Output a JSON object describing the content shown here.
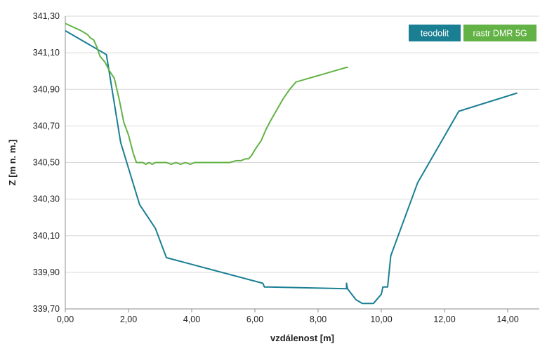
{
  "chart_data": {
    "type": "line",
    "xlabel": "vzdálenost [m]",
    "ylabel": "Z [m n. m.]",
    "xlim": [
      0,
      15
    ],
    "ylim": [
      339.7,
      341.3
    ],
    "x_ticks": [
      "0,00",
      "2,00",
      "4,00",
      "6,00",
      "8,00",
      "10,00",
      "12,00",
      "14,00"
    ],
    "y_ticks": [
      "339,70",
      "339,90",
      "340,10",
      "340,30",
      "340,50",
      "340,70",
      "340,90",
      "341,10",
      "341,30"
    ],
    "x_tick_values": [
      0,
      2,
      4,
      6,
      8,
      10,
      12,
      14
    ],
    "y_tick_values": [
      339.7,
      339.9,
      340.1,
      340.3,
      340.5,
      340.7,
      340.9,
      341.1,
      341.3
    ],
    "grid": "horizontal",
    "legend_position": "top-right",
    "series": [
      {
        "name": "teodolit",
        "color": "#1a7f93",
        "x": [
          0.0,
          1.3,
          1.75,
          2.35,
          2.85,
          3.2,
          6.25,
          6.3,
          8.9,
          8.9,
          8.93,
          9.2,
          9.4,
          9.75,
          10.0,
          10.05,
          10.2,
          10.3,
          11.15,
          12.45,
          14.3
        ],
        "y": [
          341.22,
          341.09,
          340.61,
          340.27,
          340.14,
          339.98,
          339.84,
          339.82,
          339.81,
          339.84,
          339.81,
          339.75,
          339.73,
          339.73,
          339.78,
          339.82,
          339.82,
          339.99,
          340.39,
          340.78,
          340.88
        ]
      },
      {
        "name": "rastr DMR 5G",
        "color": "#63b245",
        "x": [
          0.0,
          0.25,
          0.5,
          0.7,
          0.8,
          0.9,
          1.0,
          1.1,
          1.25,
          1.4,
          1.55,
          1.7,
          1.85,
          2.0,
          2.15,
          2.25,
          2.35,
          2.45,
          2.55,
          2.65,
          2.75,
          2.85,
          3.0,
          3.2,
          3.35,
          3.5,
          3.65,
          3.8,
          3.95,
          4.1,
          4.25,
          4.4,
          4.6,
          4.8,
          5.0,
          5.2,
          5.4,
          5.55,
          5.7,
          5.8,
          5.9,
          6.0,
          6.2,
          6.35,
          6.5,
          6.7,
          6.9,
          7.1,
          7.3,
          7.5,
          7.7,
          7.9,
          8.1,
          8.3,
          8.5,
          8.7,
          8.9,
          8.95
        ],
        "y": [
          341.26,
          341.24,
          341.22,
          341.2,
          341.18,
          341.17,
          341.13,
          341.08,
          341.05,
          341.0,
          340.96,
          340.85,
          340.72,
          340.65,
          340.55,
          340.5,
          340.5,
          340.5,
          340.49,
          340.5,
          340.49,
          340.5,
          340.5,
          340.5,
          340.49,
          340.5,
          340.49,
          340.5,
          340.49,
          340.5,
          340.5,
          340.5,
          340.5,
          340.5,
          340.5,
          340.5,
          340.51,
          340.51,
          340.52,
          340.52,
          340.54,
          340.57,
          340.62,
          340.68,
          340.73,
          340.79,
          340.85,
          340.9,
          340.94,
          340.95,
          340.96,
          340.97,
          340.98,
          340.99,
          341.0,
          341.01,
          341.02,
          341.02
        ]
      }
    ]
  }
}
